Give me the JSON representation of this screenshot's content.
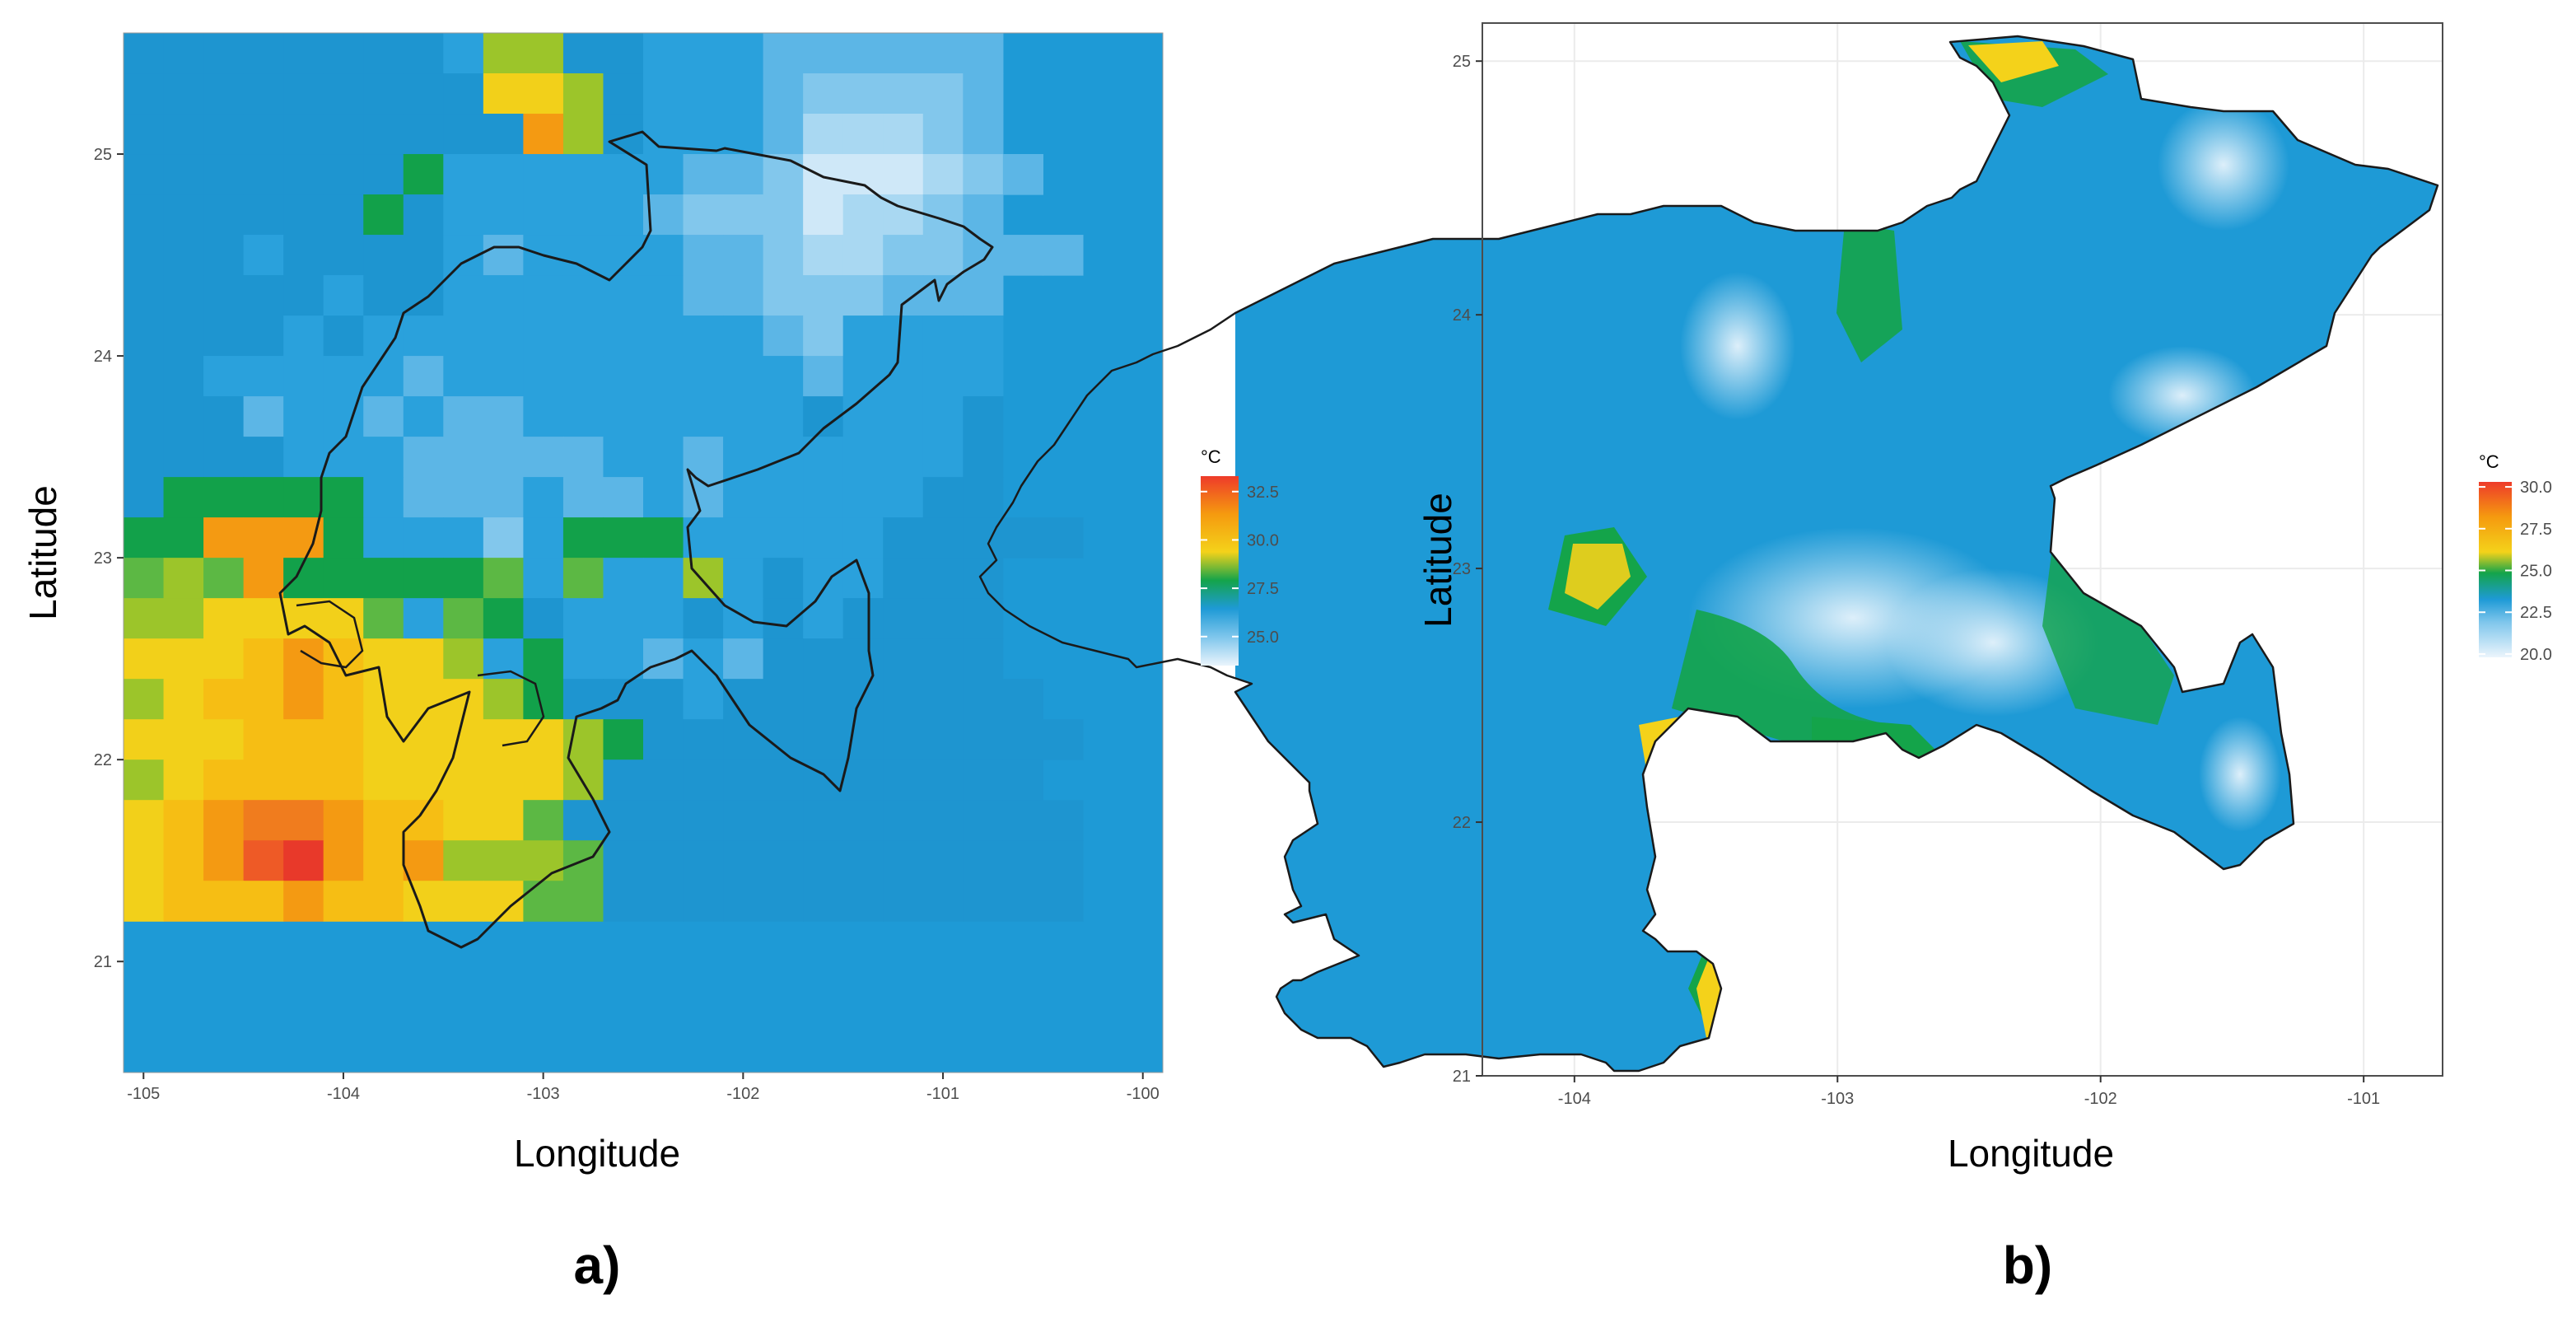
{
  "chart_data": [
    {
      "type": "heatmap",
      "panel_label": "a)",
      "xlabel": "Longitude",
      "ylabel": "Latitude",
      "xlim": [
        -105.1,
        -99.9
      ],
      "ylim": [
        20.45,
        25.6
      ],
      "x_ticks": [
        "-105",
        "-104",
        "-103",
        "-102",
        "-101",
        "-100"
      ],
      "y_ticks": [
        "21",
        "22",
        "23",
        "24",
        "25"
      ],
      "legend": {
        "title": "°C",
        "ticks": [
          "32.5",
          "30.0",
          "27.5",
          "25.0"
        ],
        "range": [
          23.5,
          33.3
        ]
      },
      "grid": {
        "lon_start": -105.1,
        "lat_top": 25.6,
        "cell_deg": 0.2,
        "values": [
          "888888887BB88777666666",
          "888888888CCB8777655556",
          "8888888888EB8777644456",
          "88888889777777665333456",
          "8888889877777655534456",
          "888788887677776654455666",
          "8888878877777766555666",
          "8888787777777777657777",
          "8877777677777777767777",
          "8886776766777777787778",
          "8888777666667767777778",
          "8999997666766767777788",
          "99EEE9777579997777788888",
          "ABAE99999A7A77B7877888",
          "BBCCCCA7A9877787878888",
          "CCCDEDCCB7977676888888",
          "BCDDEDCCCB9888788888888",
          "CCCDDDCCCCCB988888888888",
          "BCDDDDCCCCCB88888888888",
          "CDEFFEDDCCA8888888888888",
          "CDEGHEDEBBBA888888888888",
          "CDDDEDDCCCAA888888888888"
        ]
      }
    },
    {
      "type": "heatmap",
      "panel_label": "b)",
      "xlabel": "Longitude",
      "ylabel": "Latitude",
      "xlim": [
        -104.35,
        -100.7
      ],
      "ylim": [
        21.0,
        25.15
      ],
      "x_ticks": [
        "-104",
        "-103",
        "-102",
        "-101"
      ],
      "y_ticks": [
        "21",
        "22",
        "23",
        "24",
        "25"
      ],
      "legend": {
        "title": "°C",
        "ticks": [
          "30.0",
          "27.5",
          "25.0",
          "22.5",
          "20.0"
        ],
        "range": [
          19.8,
          30.3
        ]
      }
    }
  ],
  "colors": {
    "panel_background": "#ffffff",
    "gridline": "#ebebeb",
    "border": "#4d4d4d"
  }
}
